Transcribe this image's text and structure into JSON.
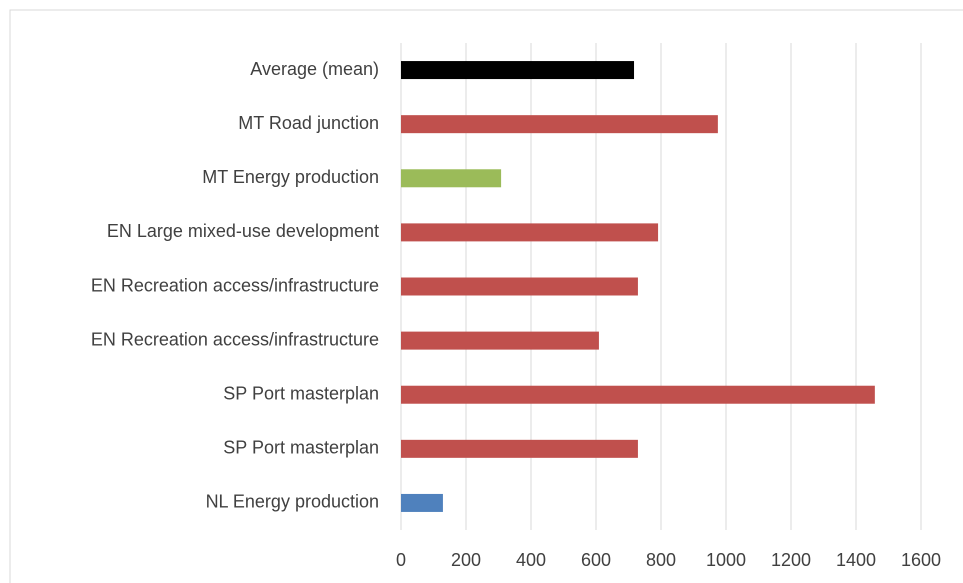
{
  "chart_data": {
    "type": "barh",
    "categories": [
      "Average (mean)",
      "MT Road junction",
      "MT Energy production",
      "EN Large mixed-use development",
      "EN Recreation access/infrastructure",
      "EN Recreation access/infrastructure",
      "SP Port masterplan",
      "SP Port masterplan",
      "NL Energy production"
    ],
    "values": [
      717,
      975,
      308,
      791,
      729,
      609,
      1458,
      729,
      129
    ],
    "colors": [
      "#000000",
      "#c0504d",
      "#9bbb59",
      "#c0504d",
      "#c0504d",
      "#c0504d",
      "#c0504d",
      "#c0504d",
      "#4f81bd"
    ],
    "xlim": [
      0,
      1600
    ],
    "xticks": [
      0,
      200,
      400,
      600,
      800,
      1000,
      1200,
      1400,
      1600
    ],
    "grid": true
  }
}
